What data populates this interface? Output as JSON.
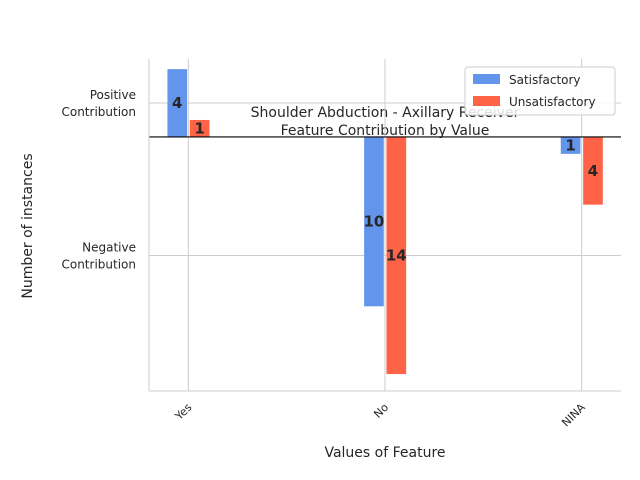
{
  "chart_data": {
    "type": "bar",
    "title": "Shoulder Abduction - Axillary Receiver",
    "subtitle": "Feature Contribution by Value",
    "xlabel": "Values of Feature",
    "ylabel": "Number of instances",
    "categories": [
      "Yes",
      "No",
      "NINA"
    ],
    "series": [
      {
        "name": "Satisfactory",
        "color": "#6495ED",
        "values": [
          4,
          -10,
          -1
        ],
        "labels": [
          "4",
          "10",
          "1"
        ]
      },
      {
        "name": "Unsatisfactory",
        "color": "#FF6347",
        "values": [
          1,
          -14,
          -4
        ],
        "labels": [
          "1",
          "14",
          "4"
        ]
      }
    ],
    "ylim": [
      -15,
      4.6
    ],
    "yticks": [
      {
        "value": 2,
        "label": "Positive\nContribution"
      },
      {
        "value": -7,
        "label": "Negative\nContribution"
      }
    ],
    "zero_line": true,
    "grid": true,
    "legend_position": "upper right"
  }
}
